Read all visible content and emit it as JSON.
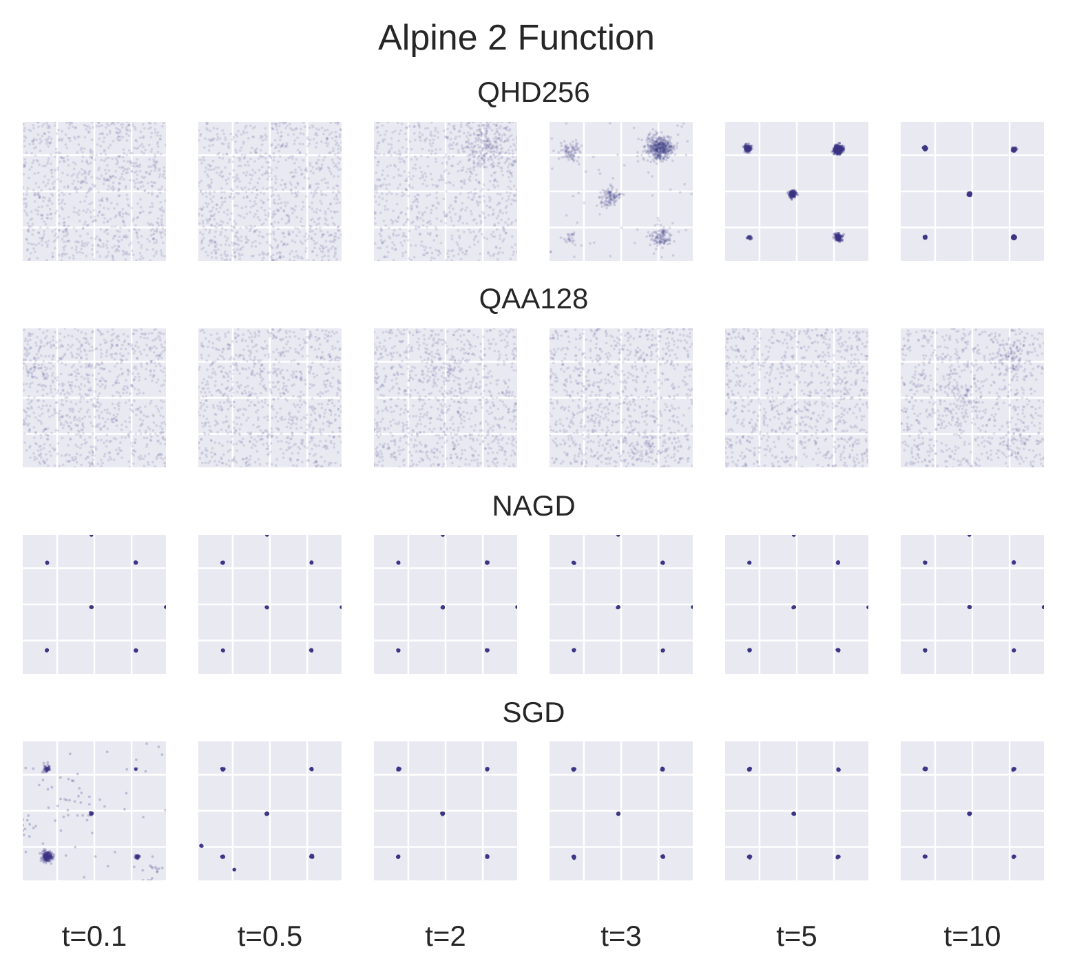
{
  "title": "Alpine 2 Function",
  "chart_data": {
    "type": "scatter",
    "title": "Alpine 2 Function",
    "grid": true,
    "axes_visible": false,
    "point_color": "#3b3584",
    "panel_background": "#e9e9f1",
    "grid_color": "#ffffff",
    "columns": [
      "t=0.1",
      "t=0.5",
      "t=2",
      "t=3",
      "t=5",
      "t=10"
    ],
    "rows": [
      {
        "name": "QHD256",
        "panels": [
          {
            "uniform": 900,
            "alpha": 0.13,
            "clusters": []
          },
          {
            "uniform": 900,
            "alpha": 0.13,
            "clusters": []
          },
          {
            "uniform": 700,
            "alpha": 0.13,
            "clusters": [
              [
                0.78,
                0.17,
                0.1,
                250
              ]
            ]
          },
          {
            "uniform": 60,
            "alpha": 0.16,
            "clusters": [
              [
                0.77,
                0.19,
                0.045,
                450
              ],
              [
                0.15,
                0.21,
                0.035,
                80
              ],
              [
                0.42,
                0.54,
                0.035,
                110
              ],
              [
                0.77,
                0.83,
                0.04,
                120
              ],
              [
                0.14,
                0.83,
                0.02,
                20
              ]
            ]
          },
          {
            "uniform": 0,
            "alpha": 0.3,
            "clusters": [
              [
                0.79,
                0.2,
                0.015,
                400
              ],
              [
                0.16,
                0.19,
                0.012,
                150
              ],
              [
                0.47,
                0.52,
                0.012,
                180
              ],
              [
                0.79,
                0.83,
                0.012,
                150
              ],
              [
                0.17,
                0.83,
                0.008,
                30
              ]
            ]
          },
          {
            "uniform": 0,
            "alpha": 0.5,
            "clusters": [
              [
                0.79,
                0.2,
                0.004,
                120
              ],
              [
                0.17,
                0.19,
                0.004,
                100
              ],
              [
                0.48,
                0.52,
                0.004,
                80
              ],
              [
                0.79,
                0.83,
                0.004,
                100
              ],
              [
                0.17,
                0.83,
                0.003,
                40
              ]
            ]
          }
        ]
      },
      {
        "name": "QAA128",
        "panels": [
          {
            "uniform": 900,
            "alpha": 0.13,
            "clusters": [
              [
                0.08,
                0.26,
                0.05,
                40
              ]
            ]
          },
          {
            "uniform": 900,
            "alpha": 0.13,
            "clusters": []
          },
          {
            "uniform": 900,
            "alpha": 0.13,
            "clusters": [
              [
                0.55,
                0.35,
                0.1,
                60
              ]
            ]
          },
          {
            "uniform": 900,
            "alpha": 0.13,
            "clusters": [
              [
                0.7,
                0.85,
                0.08,
                50
              ]
            ]
          },
          {
            "uniform": 900,
            "alpha": 0.13,
            "clusters": []
          },
          {
            "uniform": 800,
            "alpha": 0.13,
            "clusters": [
              [
                0.79,
                0.2,
                0.07,
                90
              ],
              [
                0.45,
                0.5,
                0.08,
                60
              ],
              [
                0.79,
                0.8,
                0.06,
                40
              ]
            ]
          }
        ]
      },
      {
        "name": "NAGD",
        "panels": [
          {
            "uniform": 0,
            "alpha": 0.9,
            "clusters": [
              [
                0.17,
                0.2,
                0.002,
                8
              ],
              [
                0.79,
                0.2,
                0.002,
                8
              ],
              [
                0.48,
                0.52,
                0.002,
                8
              ],
              [
                0.17,
                0.83,
                0.002,
                8
              ],
              [
                0.79,
                0.83,
                0.002,
                8
              ],
              [
                1.0,
                0.52,
                0.001,
                3
              ],
              [
                0.48,
                0.0,
                0.001,
                3
              ]
            ]
          },
          {
            "uniform": 0,
            "alpha": 0.9,
            "clusters": [
              [
                0.17,
                0.2,
                0.002,
                8
              ],
              [
                0.79,
                0.2,
                0.002,
                8
              ],
              [
                0.48,
                0.52,
                0.002,
                8
              ],
              [
                0.17,
                0.83,
                0.002,
                8
              ],
              [
                0.79,
                0.83,
                0.002,
                8
              ],
              [
                1.0,
                0.52,
                0.001,
                3
              ],
              [
                0.48,
                0.0,
                0.001,
                3
              ]
            ]
          },
          {
            "uniform": 0,
            "alpha": 0.9,
            "clusters": [
              [
                0.17,
                0.2,
                0.002,
                8
              ],
              [
                0.79,
                0.2,
                0.002,
                8
              ],
              [
                0.48,
                0.52,
                0.002,
                8
              ],
              [
                0.17,
                0.83,
                0.002,
                8
              ],
              [
                0.79,
                0.83,
                0.002,
                8
              ],
              [
                1.0,
                0.52,
                0.001,
                3
              ],
              [
                0.48,
                0.0,
                0.001,
                3
              ]
            ]
          },
          {
            "uniform": 0,
            "alpha": 0.9,
            "clusters": [
              [
                0.17,
                0.2,
                0.002,
                8
              ],
              [
                0.79,
                0.2,
                0.002,
                8
              ],
              [
                0.48,
                0.52,
                0.002,
                8
              ],
              [
                0.17,
                0.83,
                0.002,
                8
              ],
              [
                0.79,
                0.83,
                0.002,
                8
              ],
              [
                1.0,
                0.52,
                0.001,
                3
              ],
              [
                0.48,
                0.0,
                0.001,
                3
              ]
            ]
          },
          {
            "uniform": 0,
            "alpha": 0.9,
            "clusters": [
              [
                0.17,
                0.2,
                0.002,
                8
              ],
              [
                0.79,
                0.2,
                0.002,
                8
              ],
              [
                0.48,
                0.52,
                0.002,
                8
              ],
              [
                0.17,
                0.83,
                0.002,
                8
              ],
              [
                0.79,
                0.83,
                0.002,
                8
              ],
              [
                1.0,
                0.52,
                0.001,
                3
              ],
              [
                0.48,
                0.0,
                0.001,
                3
              ]
            ]
          },
          {
            "uniform": 0,
            "alpha": 0.9,
            "clusters": [
              [
                0.17,
                0.2,
                0.002,
                8
              ],
              [
                0.79,
                0.2,
                0.002,
                8
              ],
              [
                0.48,
                0.52,
                0.002,
                8
              ],
              [
                0.17,
                0.83,
                0.002,
                8
              ],
              [
                0.79,
                0.83,
                0.002,
                8
              ],
              [
                1.0,
                0.52,
                0.001,
                3
              ],
              [
                0.48,
                0.0,
                0.001,
                3
              ]
            ]
          }
        ]
      },
      {
        "name": "SGD",
        "panels": [
          {
            "uniform": 40,
            "alpha": 0.25,
            "clusters": [
              [
                0.17,
                0.2,
                0.012,
                60
              ],
              [
                0.79,
                0.2,
                0.003,
                20
              ],
              [
                0.48,
                0.52,
                0.006,
                40
              ],
              [
                0.17,
                0.83,
                0.018,
                200
              ],
              [
                0.8,
                0.83,
                0.007,
                60
              ],
              [
                0.3,
                0.45,
                0.08,
                20
              ],
              [
                0.9,
                0.93,
                0.04,
                15
              ],
              [
                0.05,
                0.6,
                0.04,
                10
              ]
            ]
          },
          {
            "uniform": 0,
            "alpha": 0.9,
            "clusters": [
              [
                0.17,
                0.2,
                0.003,
                10
              ],
              [
                0.79,
                0.2,
                0.003,
                10
              ],
              [
                0.48,
                0.52,
                0.003,
                10
              ],
              [
                0.17,
                0.83,
                0.003,
                10
              ],
              [
                0.79,
                0.83,
                0.003,
                10
              ],
              [
                0.02,
                0.75,
                0.005,
                3
              ],
              [
                0.25,
                0.92,
                0.005,
                2
              ]
            ]
          },
          {
            "uniform": 0,
            "alpha": 0.9,
            "clusters": [
              [
                0.17,
                0.2,
                0.003,
                10
              ],
              [
                0.79,
                0.2,
                0.003,
                10
              ],
              [
                0.48,
                0.52,
                0.003,
                10
              ],
              [
                0.17,
                0.83,
                0.003,
                10
              ],
              [
                0.79,
                0.83,
                0.003,
                10
              ]
            ]
          },
          {
            "uniform": 0,
            "alpha": 0.9,
            "clusters": [
              [
                0.17,
                0.2,
                0.003,
                10
              ],
              [
                0.79,
                0.2,
                0.003,
                10
              ],
              [
                0.48,
                0.52,
                0.003,
                10
              ],
              [
                0.17,
                0.83,
                0.003,
                10
              ],
              [
                0.79,
                0.83,
                0.003,
                10
              ]
            ]
          },
          {
            "uniform": 0,
            "alpha": 0.9,
            "clusters": [
              [
                0.17,
                0.2,
                0.003,
                10
              ],
              [
                0.79,
                0.2,
                0.003,
                10
              ],
              [
                0.48,
                0.52,
                0.003,
                10
              ],
              [
                0.17,
                0.83,
                0.003,
                10
              ],
              [
                0.79,
                0.83,
                0.003,
                10
              ]
            ]
          },
          {
            "uniform": 0,
            "alpha": 0.9,
            "clusters": [
              [
                0.17,
                0.2,
                0.003,
                10
              ],
              [
                0.79,
                0.2,
                0.003,
                10
              ],
              [
                0.48,
                0.52,
                0.003,
                10
              ],
              [
                0.17,
                0.83,
                0.003,
                10
              ],
              [
                0.79,
                0.83,
                0.003,
                10
              ]
            ]
          }
        ]
      }
    ]
  }
}
